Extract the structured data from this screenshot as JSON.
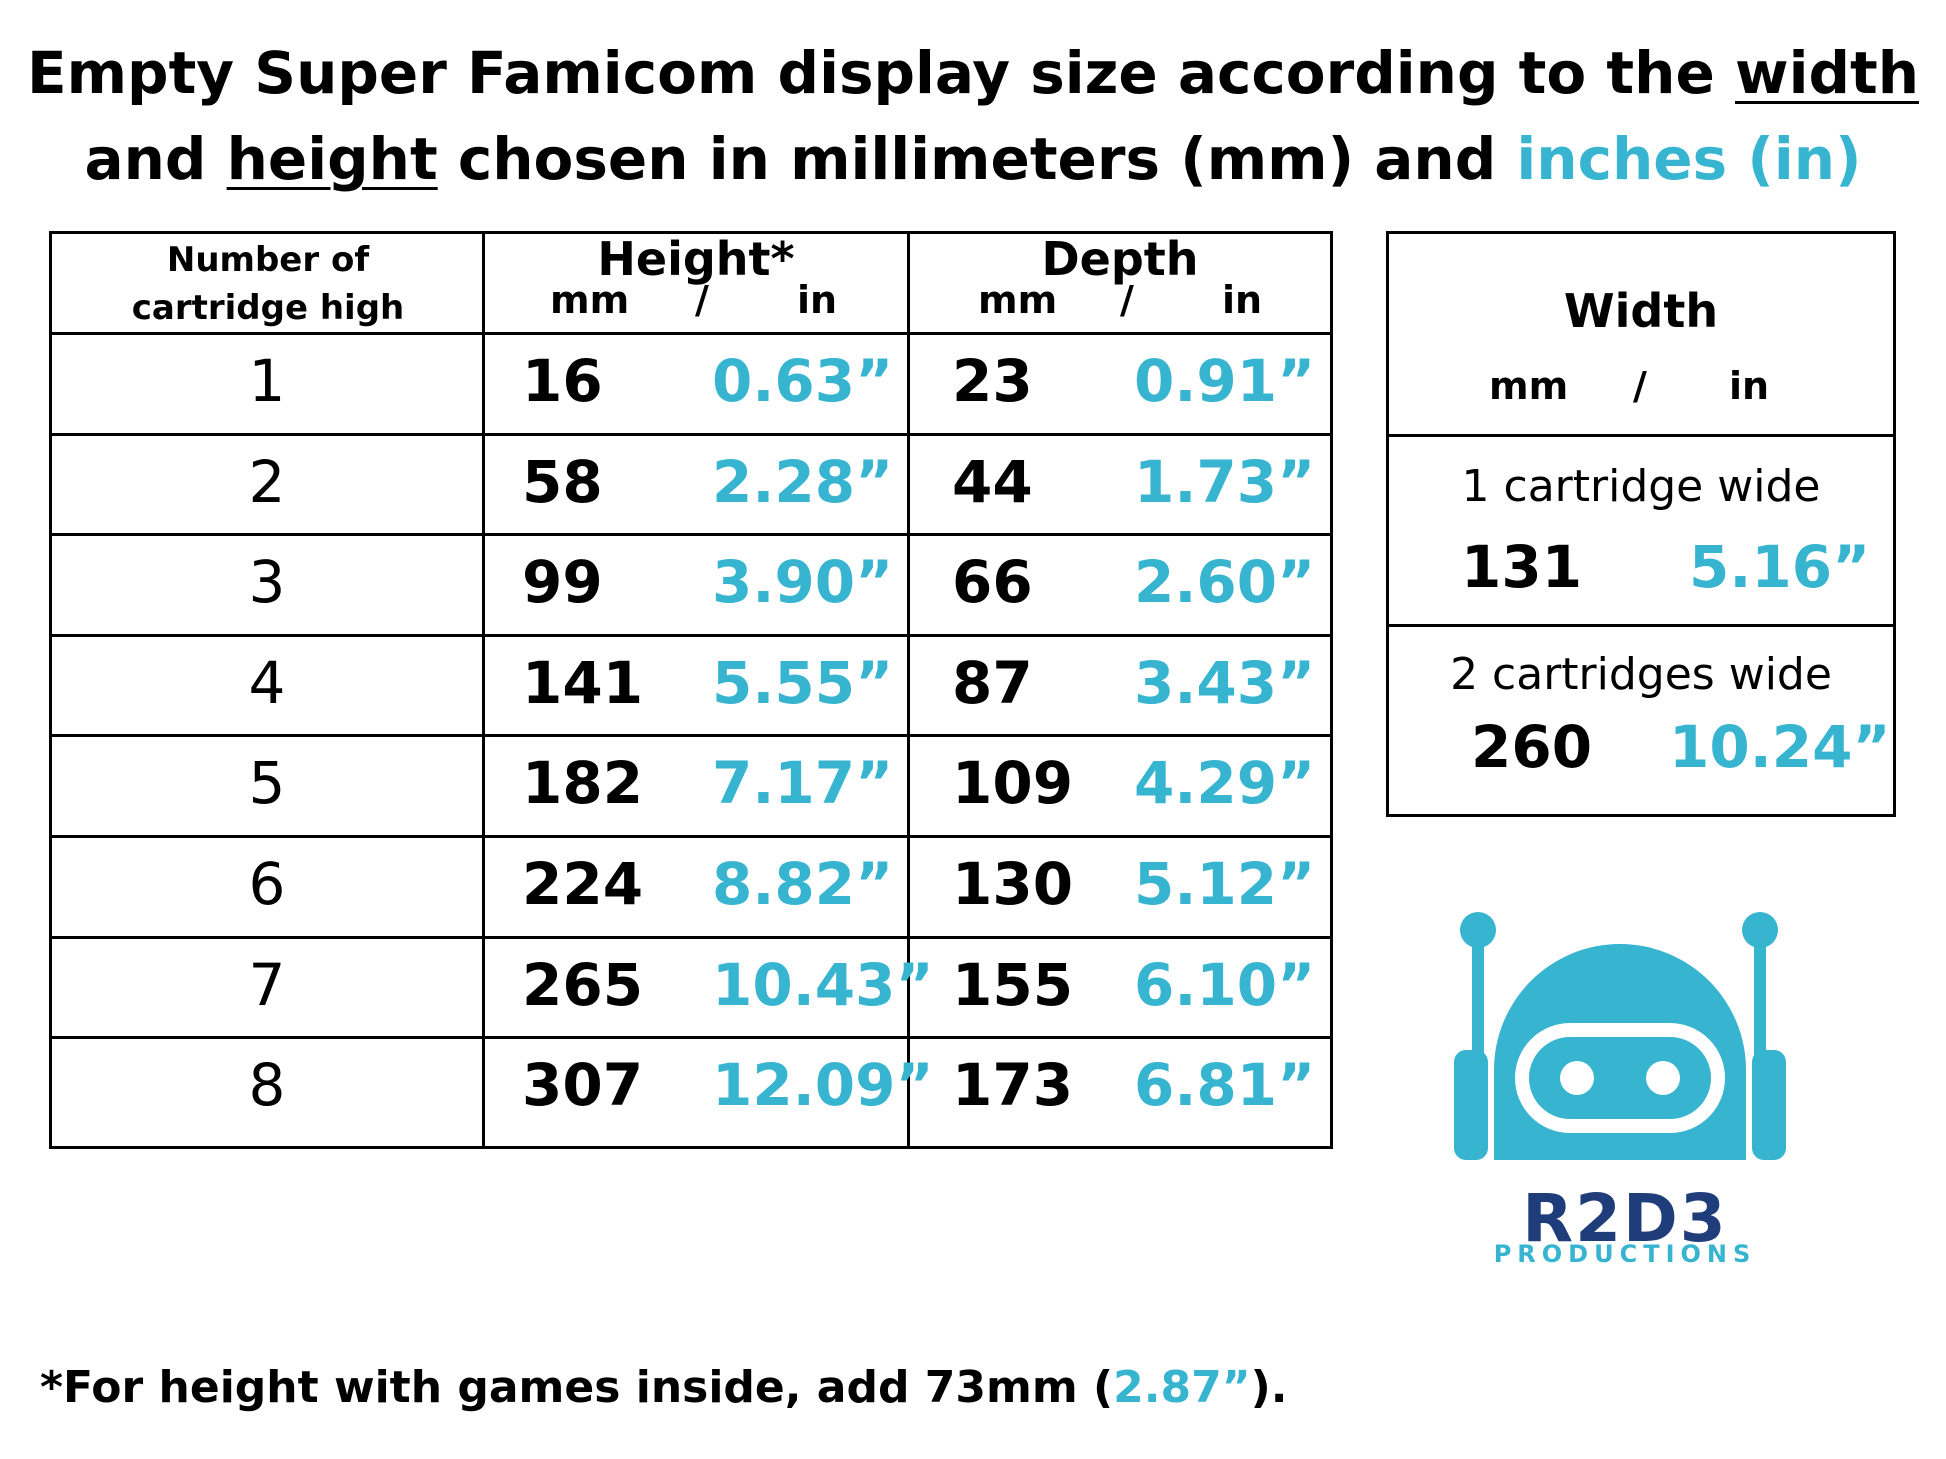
{
  "title": {
    "line1_prefix": "Empty Super Famicom display size according to the ",
    "width_word": "width",
    "line2_and": "and ",
    "height_word": "height",
    "line2_mid": " chosen in millimeters (mm) and ",
    "inches_word": "inches (in)"
  },
  "main_table": {
    "col_count_header_line1": "Number of",
    "col_count_header_line2": "cartridge high",
    "height_header": "Height*",
    "depth_header": "Depth",
    "unit_mm": "mm",
    "unit_sep": "/",
    "unit_in": "in",
    "rows": [
      {
        "n": "1",
        "h_mm": "16",
        "h_in": "0.63”",
        "d_mm": "23",
        "d_in": "0.91”"
      },
      {
        "n": "2",
        "h_mm": "58",
        "h_in": "2.28”",
        "d_mm": "44",
        "d_in": "1.73”"
      },
      {
        "n": "3",
        "h_mm": "99",
        "h_in": "3.90”",
        "d_mm": "66",
        "d_in": "2.60”"
      },
      {
        "n": "4",
        "h_mm": "141",
        "h_in": "5.55”",
        "d_mm": "87",
        "d_in": "3.43”"
      },
      {
        "n": "5",
        "h_mm": "182",
        "h_in": "7.17”",
        "d_mm": "109",
        "d_in": "4.29”"
      },
      {
        "n": "6",
        "h_mm": "224",
        "h_in": "8.82”",
        "d_mm": "130",
        "d_in": "5.12”"
      },
      {
        "n": "7",
        "h_mm": "265",
        "h_in": "10.43”",
        "d_mm": "155",
        "d_in": "6.10”"
      },
      {
        "n": "8",
        "h_mm": "307",
        "h_in": "12.09”",
        "d_mm": "173",
        "d_in": "6.81”"
      }
    ]
  },
  "width_table": {
    "header": "Width",
    "unit_mm": "mm",
    "unit_sep": "/",
    "unit_in": "in",
    "options": [
      {
        "label": "1 cartridge wide",
        "mm": "131",
        "in": "5.16”"
      },
      {
        "label": "2 cartridges wide",
        "mm": "260",
        "in": "10.24”"
      }
    ]
  },
  "footnote": {
    "prefix": "*For height with games inside, add 73mm (",
    "inch": "2.87”",
    "suffix": ")."
  },
  "logo": {
    "wordmark": "R2D3",
    "tagline": "PRODUCTIONS",
    "icon": "robot-icon",
    "colors": {
      "primary": "#36b4d0",
      "wordmark": "#1e3d7a"
    }
  }
}
